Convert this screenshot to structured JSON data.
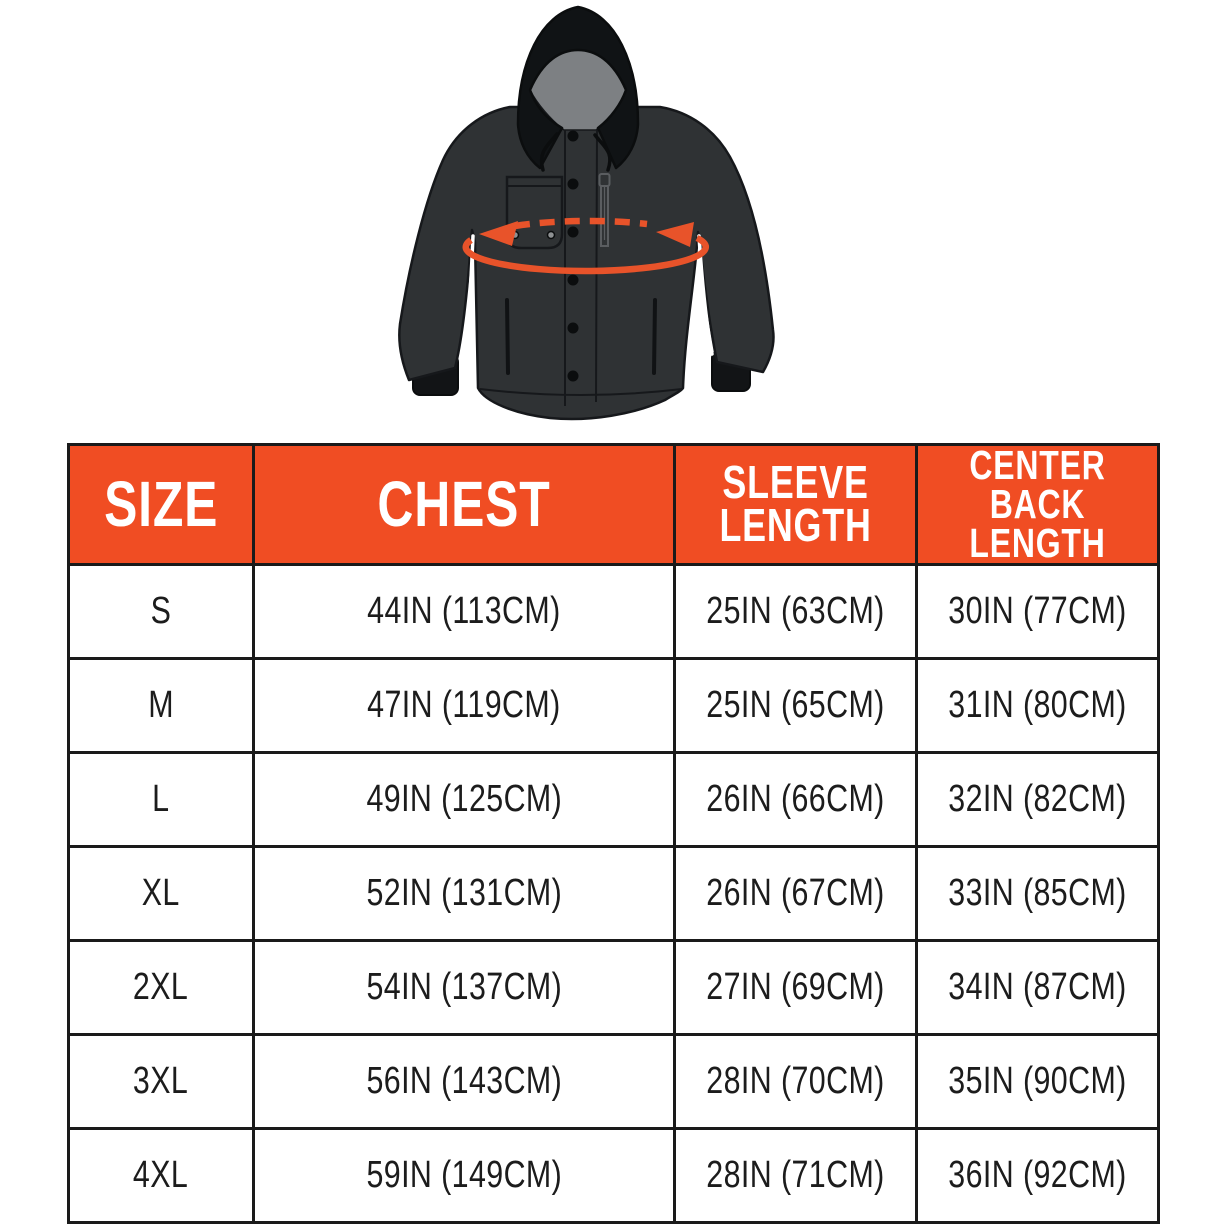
{
  "illustration": {
    "name": "hooded jacket with chest measurement arrow",
    "colors": {
      "jacket_body": "#2f3234",
      "hood": "#101315",
      "hood_lining": "#7d8083",
      "outline": "#16181b",
      "arrow_orange": "#e8532a",
      "rivet_gray": "#8e9193",
      "zipper_gray": "#5a5d60"
    }
  },
  "table": {
    "header_bg": "#f04d23",
    "header_text_color": "#ffffff",
    "border_color": "#1a1a1a",
    "columns": [
      "SIZE",
      "CHEST",
      "SLEEVE\nLENGTH",
      "CENTER\nBACK LENGTH"
    ],
    "rows": [
      {
        "size": "S",
        "chest": "44IN (113CM)",
        "sleeve_length": "25IN (63CM)",
        "center_back_length": "30IN (77CM)"
      },
      {
        "size": "M",
        "chest": "47IN (119CM)",
        "sleeve_length": "25IN (65CM)",
        "center_back_length": "31IN (80CM)"
      },
      {
        "size": "L",
        "chest": "49IN (125CM)",
        "sleeve_length": "26IN (66CM)",
        "center_back_length": "32IN (82CM)"
      },
      {
        "size": "XL",
        "chest": "52IN (131CM)",
        "sleeve_length": "26IN (67CM)",
        "center_back_length": "33IN (85CM)"
      },
      {
        "size": "2XL",
        "chest": "54IN (137CM)",
        "sleeve_length": "27IN (69CM)",
        "center_back_length": "34IN (87CM)"
      },
      {
        "size": "3XL",
        "chest": "56IN (143CM)",
        "sleeve_length": "28IN (70CM)",
        "center_back_length": "35IN (90CM)"
      },
      {
        "size": "4XL",
        "chest": "59IN (149CM)",
        "sleeve_length": "28IN (71CM)",
        "center_back_length": "36IN (92CM)"
      }
    ]
  },
  "chart_data": {
    "type": "table",
    "title": "Jacket size chart",
    "columns": [
      "SIZE",
      "CHEST",
      "SLEEVE LENGTH",
      "CENTER BACK LENGTH"
    ],
    "rows": [
      [
        "S",
        "44IN (113CM)",
        "25IN (63CM)",
        "30IN (77CM)"
      ],
      [
        "M",
        "47IN (119CM)",
        "25IN (65CM)",
        "31IN (80CM)"
      ],
      [
        "L",
        "49IN (125CM)",
        "26IN (66CM)",
        "32IN (82CM)"
      ],
      [
        "XL",
        "52IN (131CM)",
        "26IN (67CM)",
        "33IN (85CM)"
      ],
      [
        "2XL",
        "54IN (137CM)",
        "27IN (69CM)",
        "34IN (87CM)"
      ],
      [
        "3XL",
        "56IN (143CM)",
        "28IN (70CM)",
        "35IN (90CM)"
      ],
      [
        "4XL",
        "59IN (149CM)",
        "28IN (71CM)",
        "36IN (92CM)"
      ]
    ]
  }
}
